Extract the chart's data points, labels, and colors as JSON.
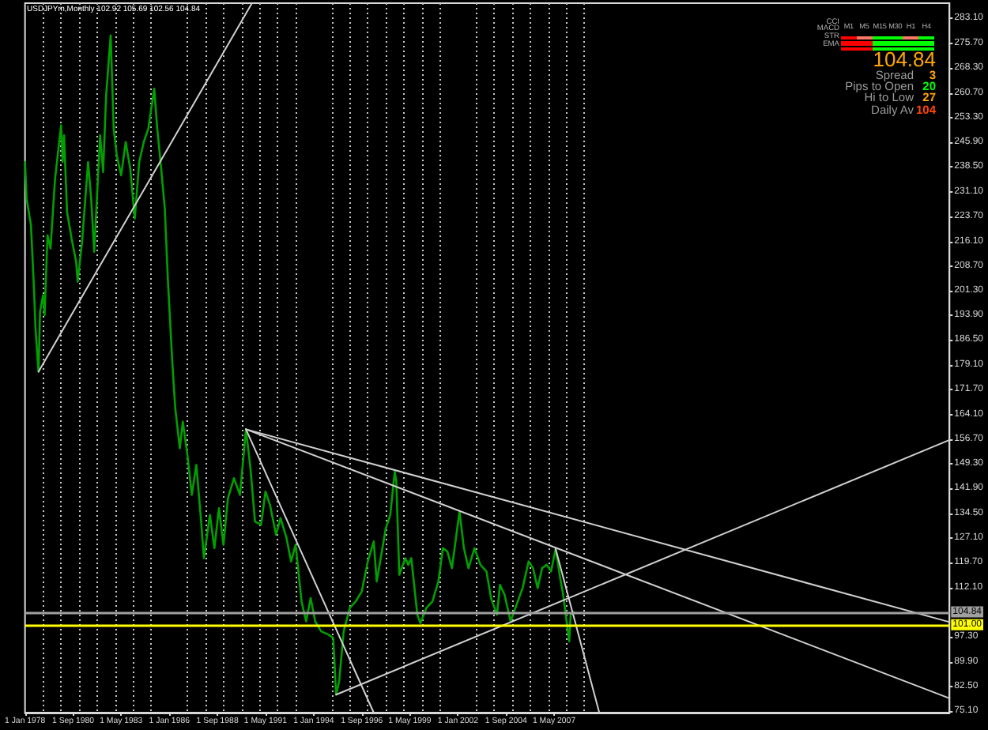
{
  "chart_data": {
    "type": "line",
    "title": "USDJPYm,Monthly 102.92 105.69 102.56 104.84",
    "annotations": [
      "104.84",
      "Spread",
      "3",
      "Pips to Open",
      "20",
      "Hi to Low",
      "27",
      "Daily Av",
      "104",
      "M1",
      "M5",
      "M15",
      "M30",
      "H1",
      "H4",
      "CCI",
      "MACD",
      "STR",
      "EMA"
    ],
    "xlim": [
      "1978-01",
      "2029-04"
    ],
    "xticks": [
      {
        "value": "1978-01",
        "label": "1 Jan 1978"
      },
      {
        "value": "1979-01",
        "label": null
      },
      {
        "value": "1980-01",
        "label": null
      },
      {
        "value": "1980-09",
        "label": "1 Sep 1980"
      },
      {
        "value": "1981-01",
        "label": null
      },
      {
        "value": "1982-01",
        "label": null
      },
      {
        "value": "1983-01",
        "label": null
      },
      {
        "value": "1983-05",
        "label": "1 May 1983"
      },
      {
        "value": "1984-01",
        "label": null
      },
      {
        "value": "1985-01",
        "label": null
      },
      {
        "value": "1986-01",
        "label": "1 Jan 1986"
      },
      {
        "value": "1987-01",
        "label": null
      },
      {
        "value": "1988-01",
        "label": null
      },
      {
        "value": "1988-09",
        "label": "1 Sep 1988"
      },
      {
        "value": "1989-01",
        "label": null
      },
      {
        "value": "1990-01",
        "label": null
      },
      {
        "value": "1991-01",
        "label": null
      },
      {
        "value": "1991-05",
        "label": "1 May 1991"
      },
      {
        "value": "1992-01",
        "label": null
      },
      {
        "value": "1993-01",
        "label": null
      },
      {
        "value": "1994-01",
        "label": "1 Jan 1994"
      },
      {
        "value": "1995-01",
        "label": null
      },
      {
        "value": "1996-01",
        "label": null
      },
      {
        "value": "1996-09",
        "label": "1 Sep 1996"
      },
      {
        "value": "1997-01",
        "label": null
      },
      {
        "value": "1998-01",
        "label": null
      },
      {
        "value": "1999-01",
        "label": null
      },
      {
        "value": "1999-05",
        "label": "1 May 1999"
      },
      {
        "value": "2000-01",
        "label": null
      },
      {
        "value": "2001-01",
        "label": null
      },
      {
        "value": "2002-01",
        "label": "1 Jan 2002"
      },
      {
        "value": "2003-01",
        "label": null
      },
      {
        "value": "2004-01",
        "label": null
      },
      {
        "value": "2004-09",
        "label": "1 Sep 2004"
      },
      {
        "value": "2005-01",
        "label": null
      },
      {
        "value": "2006-01",
        "label": null
      },
      {
        "value": "2007-01",
        "label": null
      },
      {
        "value": "2007-05",
        "label": "1 May 2007"
      },
      {
        "value": "2008-01",
        "label": null
      },
      {
        "value": "2009-01",
        "label": null
      }
    ],
    "ylim": [
      74.6,
      287.7
    ],
    "yticks": [
      {
        "value": 75.1,
        "label": "75.10"
      },
      {
        "value": 82.5,
        "label": "82.50"
      },
      {
        "value": 89.9,
        "label": "89.90"
      },
      {
        "value": 97.3,
        "label": "97.30"
      },
      {
        "value": 112.1,
        "label": "112.10"
      },
      {
        "value": 119.7,
        "label": "119.70"
      },
      {
        "value": 127.1,
        "label": "127.10"
      },
      {
        "value": 134.5,
        "label": "134.50"
      },
      {
        "value": 141.9,
        "label": "141.90"
      },
      {
        "value": 149.3,
        "label": "149.30"
      },
      {
        "value": 156.7,
        "label": "156.70"
      },
      {
        "value": 164.1,
        "label": "164.10"
      },
      {
        "value": 171.7,
        "label": "171.70"
      },
      {
        "value": 179.1,
        "label": "179.10"
      },
      {
        "value": 186.5,
        "label": "186.50"
      },
      {
        "value": 193.9,
        "label": "193.90"
      },
      {
        "value": 201.3,
        "label": "201.30"
      },
      {
        "value": 208.7,
        "label": "208.70"
      },
      {
        "value": 216.1,
        "label": "216.10"
      },
      {
        "value": 223.7,
        "label": "223.70"
      },
      {
        "value": 231.1,
        "label": "231.10"
      },
      {
        "value": 238.5,
        "label": "238.50"
      },
      {
        "value": 245.9,
        "label": "245.90"
      },
      {
        "value": 253.3,
        "label": "253.30"
      },
      {
        "value": 260.7,
        "label": "260.70"
      },
      {
        "value": 268.3,
        "label": "268.30"
      },
      {
        "value": 275.7,
        "label": "275.70"
      },
      {
        "value": 283.1,
        "label": "283.10"
      }
    ],
    "grid": "x",
    "marker": "none",
    "ref_lines": [
      {
        "axis": "y",
        "value": 101.0,
        "label": "101.00",
        "color": "#ffff00"
      },
      {
        "axis": "y",
        "value": 104.84,
        "label": "104.84",
        "color": "#a0a0a0"
      }
    ],
    "series": [
      {
        "color": "#00a000",
        "x": [
          "1978-01",
          "1978-02",
          "1978-05",
          "1978-07",
          "1978-08",
          "1978-10",
          "1978-11",
          "1979-01",
          "1979-02",
          "1979-04",
          "1979-06",
          "1979-09",
          "1980-01",
          "1980-02",
          "1980-03",
          "1980-05",
          "1980-08",
          "1980-11",
          "1980-12",
          "1981-03",
          "1981-07",
          "1981-09",
          "1981-11",
          "1982-03",
          "1982-05",
          "1982-07",
          "1982-10",
          "1982-12",
          "1983-02",
          "1983-05",
          "1983-08",
          "1983-11",
          "1984-02",
          "1984-05",
          "1984-08",
          "1984-11",
          "1985-03",
          "1985-05",
          "1985-07",
          "1985-10",
          "1985-12",
          "1986-03",
          "1986-05",
          "1986-08",
          "1986-10",
          "1987-01",
          "1987-04",
          "1987-07",
          "1987-10",
          "1987-12",
          "1988-04",
          "1988-07",
          "1988-10",
          "1989-01",
          "1989-04",
          "1989-08",
          "1989-12",
          "1990-04",
          "1990-07",
          "1990-10",
          "1991-02",
          "1991-05",
          "1991-08",
          "1991-12",
          "1992-03",
          "1992-07",
          "1992-10",
          "1993-01",
          "1993-05",
          "1993-08",
          "1993-11",
          "1994-02",
          "1994-06",
          "1994-11",
          "1995-02",
          "1995-04",
          "1995-06",
          "1995-09",
          "1996-01",
          "1996-05",
          "1996-09",
          "1997-01",
          "1997-05",
          "1997-07",
          "1997-10",
          "1998-01",
          "1998-04",
          "1998-07",
          "1998-08",
          "1998-10",
          "1999-02",
          "1999-04",
          "1999-06",
          "1999-10",
          "1999-12",
          "2000-04",
          "2000-08",
          "2000-12",
          "2001-03",
          "2001-06",
          "2001-09",
          "2002-02",
          "2002-05",
          "2002-08",
          "2002-12",
          "2003-04",
          "2003-08",
          "2003-11",
          "2004-03",
          "2004-05",
          "2004-08",
          "2004-12",
          "2005-04",
          "2005-08",
          "2005-12",
          "2006-03",
          "2006-06",
          "2006-09",
          "2006-12",
          "2007-03",
          "2007-06",
          "2007-09",
          "2007-11",
          "2008-03",
          "2008-04",
          "2008-06"
        ],
        "values": [
          240,
          229,
          221,
          202,
          190,
          177,
          195,
          200,
          194,
          218,
          214,
          235,
          251,
          240,
          248,
          225,
          217,
          210,
          204,
          216,
          240,
          229,
          213,
          248,
          237,
          260,
          278,
          250,
          242,
          236,
          246,
          238,
          223,
          240,
          246,
          250,
          262,
          250,
          241,
          226,
          205,
          180,
          166,
          154,
          162,
          152,
          140,
          149,
          133,
          121,
          134,
          124,
          136,
          125,
          139,
          145,
          140,
          159.7,
          148,
          132,
          131,
          141,
          137,
          128,
          133,
          127,
          120,
          125,
          108,
          102,
          109,
          102,
          99,
          98,
          97,
          80,
          84,
          99,
          106,
          108,
          111,
          120,
          126,
          114,
          122,
          130,
          134,
          147,
          144,
          116,
          121,
          119,
          121,
          104,
          101.5,
          106,
          108,
          114,
          124,
          123,
          118,
          135,
          124,
          118,
          124,
          119,
          117,
          109,
          104,
          113,
          110,
          102,
          107,
          112,
          120,
          118,
          112,
          118,
          119,
          117,
          123.8,
          115,
          110,
          96,
          104,
          104.8
        ]
      },
      {
        "color": "#d0d0d0",
        "x": [
          "1978-10",
          "1990-08"
        ],
        "values": [
          177,
          287.7
        ]
      },
      {
        "color": "#d0d0d0",
        "x": [
          "1990-04",
          "2029-04"
        ],
        "values": [
          159.7,
          101.8
        ]
      },
      {
        "color": "#d0d0d0",
        "x": [
          "1990-04",
          "2029-04"
        ],
        "values": [
          159.7,
          78.9
        ]
      },
      {
        "color": "#d0d0d0",
        "x": [
          "1990-04",
          "1997-05"
        ],
        "values": [
          159.7,
          74.6
        ]
      },
      {
        "color": "#d0d0d0",
        "x": [
          "1995-04",
          "2029-04"
        ],
        "values": [
          80.0,
          156.5
        ]
      },
      {
        "color": "#d0d0d0",
        "x": [
          "2007-06",
          "2009-11"
        ],
        "values": [
          123.8,
          74.6
        ]
      }
    ]
  }
}
